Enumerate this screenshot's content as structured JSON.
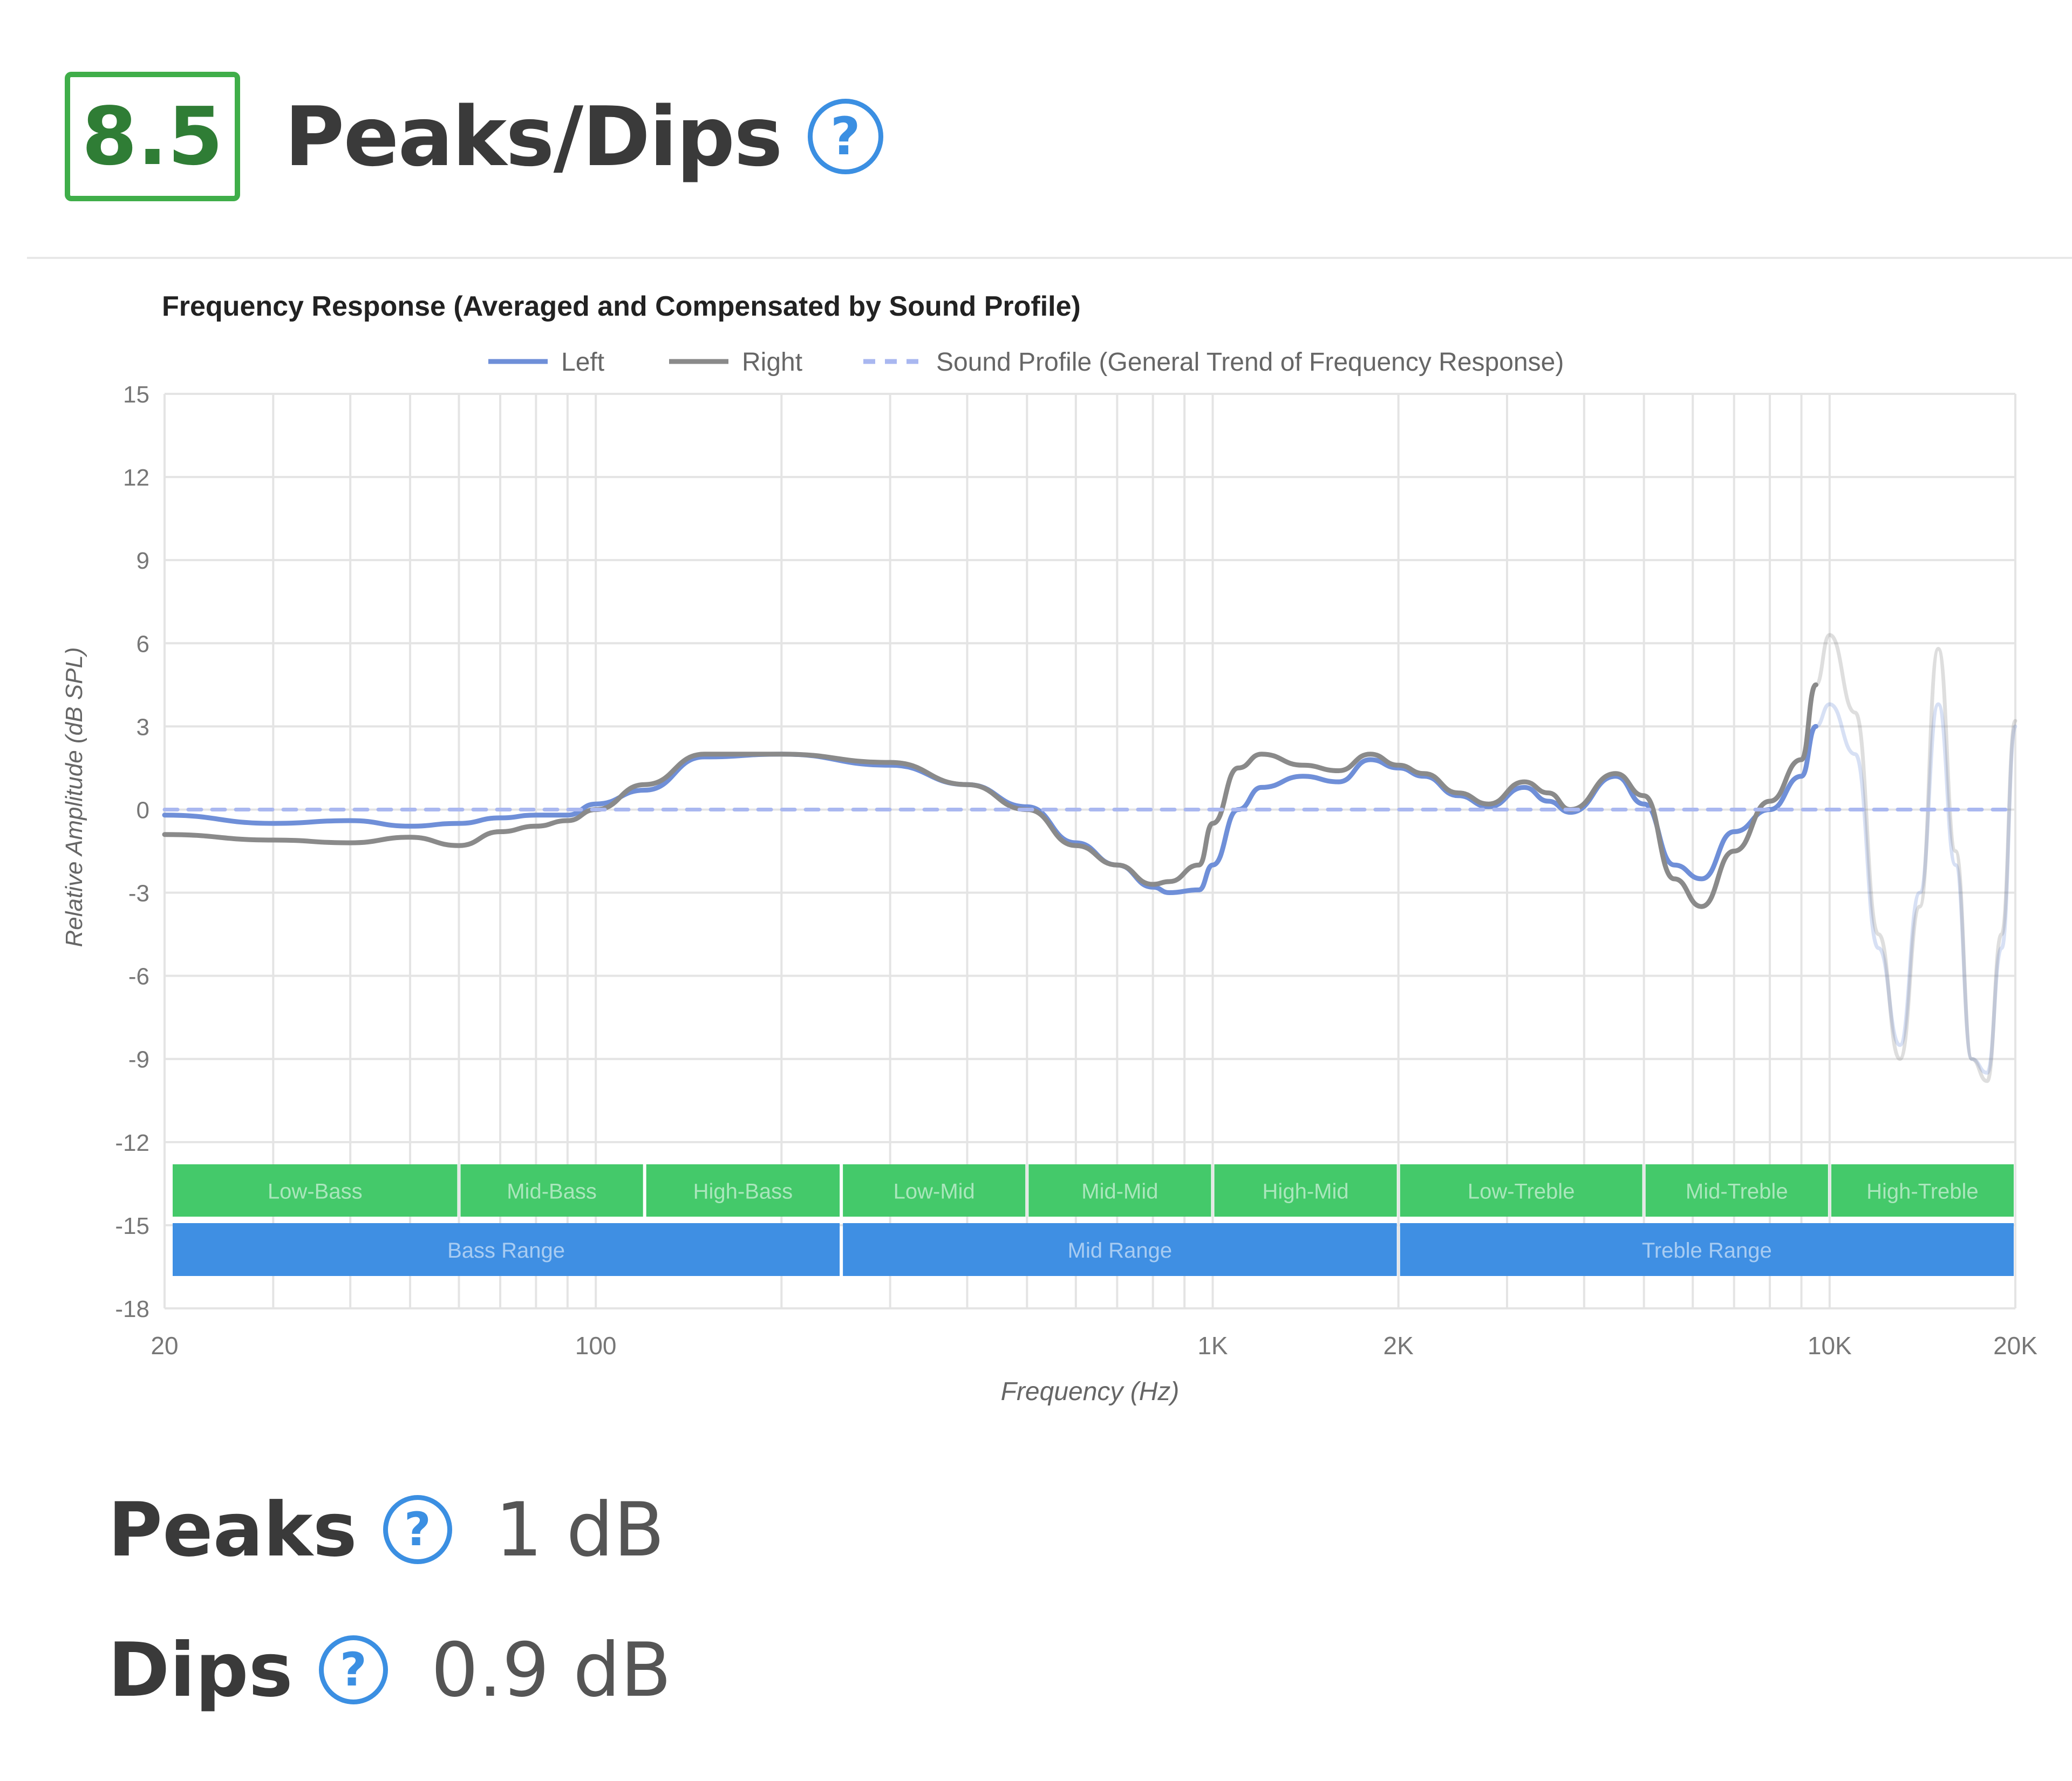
{
  "header": {
    "score": "8.5",
    "title": "Peaks/Dips",
    "help_glyph": "?"
  },
  "stats": [
    {
      "label": "Peaks",
      "value": "1 dB"
    },
    {
      "label": "Dips",
      "value": "0.9 dB"
    }
  ],
  "icons": {
    "help": "question-circle-icon"
  },
  "colors": {
    "score_border": "#3fae49",
    "score_text": "#2f7d35",
    "help": "#3b8fe2",
    "left": "#6f8fd8",
    "right": "#8a8a8a",
    "sound_profile": "#a9b7f0",
    "sub_band": "#44c96a",
    "main_band": "#3f8fe3"
  },
  "chart_data": {
    "type": "line",
    "title": "Frequency Response (Averaged and Compensated by Sound Profile)",
    "xlabel": "Frequency (Hz)",
    "ylabel": "Relative Amplitude (dB SPL)",
    "x_scale": "log",
    "xlim": [
      20,
      20000
    ],
    "ylim": [
      -18,
      15
    ],
    "y_ticks": [
      15,
      12,
      9,
      6,
      3,
      0,
      -3,
      -6,
      -9,
      -12,
      -15,
      -18
    ],
    "x_tick_labels": [
      {
        "value": 20,
        "label": "20"
      },
      {
        "value": 100,
        "label": "100"
      },
      {
        "value": 1000,
        "label": "1K"
      },
      {
        "value": 2000,
        "label": "2K"
      },
      {
        "value": 10000,
        "label": "10K"
      },
      {
        "value": 20000,
        "label": "20K"
      }
    ],
    "x_grid": [
      20,
      30,
      40,
      50,
      60,
      70,
      80,
      90,
      100,
      200,
      300,
      400,
      500,
      600,
      700,
      800,
      900,
      1000,
      2000,
      3000,
      4000,
      5000,
      6000,
      7000,
      8000,
      9000,
      10000,
      20000
    ],
    "grid": true,
    "legend": "top",
    "legend_entries": [
      {
        "name": "Left",
        "style": "solid"
      },
      {
        "name": "Right",
        "style": "solid"
      },
      {
        "name": "Sound Profile (General Trend of Frequency Response)",
        "style": "dashed"
      }
    ],
    "series": [
      {
        "name": "Left",
        "style": "solid",
        "x": [
          20,
          30,
          40,
          50,
          60,
          70,
          80,
          90,
          100,
          120,
          150,
          200,
          300,
          400,
          500,
          600,
          700,
          800,
          850,
          950,
          1000,
          1100,
          1200,
          1400,
          1600,
          1800,
          2000,
          2200,
          2500,
          2800,
          3200,
          3500,
          3800,
          4500,
          5000,
          5600,
          6200,
          7000,
          8000,
          9000,
          9500
        ],
        "y": [
          -0.2,
          -0.5,
          -0.4,
          -0.6,
          -0.5,
          -0.3,
          -0.2,
          -0.2,
          0.2,
          0.7,
          1.9,
          2.0,
          1.6,
          0.9,
          0.1,
          -1.2,
          -2.0,
          -2.8,
          -3.0,
          -2.9,
          -2.0,
          0.0,
          0.8,
          1.2,
          1.0,
          1.8,
          1.5,
          1.2,
          0.5,
          0.1,
          0.8,
          0.3,
          -0.1,
          1.2,
          0.2,
          -2.0,
          -2.5,
          -0.8,
          0.0,
          1.2,
          3.0
        ]
      },
      {
        "name": "Right",
        "style": "solid",
        "x": [
          20,
          30,
          40,
          50,
          60,
          70,
          80,
          90,
          100,
          120,
          150,
          200,
          300,
          400,
          500,
          600,
          700,
          800,
          850,
          950,
          1000,
          1100,
          1200,
          1400,
          1600,
          1800,
          2000,
          2200,
          2500,
          2800,
          3200,
          3500,
          3800,
          4500,
          5000,
          5600,
          6200,
          7000,
          8000,
          9000,
          9500
        ],
        "y": [
          -0.9,
          -1.1,
          -1.2,
          -1.0,
          -1.3,
          -0.8,
          -0.6,
          -0.4,
          0.0,
          0.9,
          2.0,
          2.0,
          1.7,
          0.9,
          0.0,
          -1.3,
          -2.0,
          -2.7,
          -2.6,
          -2.0,
          -0.5,
          1.5,
          2.0,
          1.6,
          1.4,
          2.0,
          1.6,
          1.3,
          0.6,
          0.2,
          1.0,
          0.6,
          0.0,
          1.3,
          0.5,
          -2.5,
          -3.5,
          -1.5,
          0.3,
          1.8,
          4.5
        ]
      },
      {
        "name": "Left (faded)",
        "style": "faded",
        "x": [
          9500,
          10000,
          11000,
          12000,
          13000,
          14000,
          15000,
          16000,
          17000,
          18000,
          19000,
          20000
        ],
        "y": [
          3.0,
          3.8,
          2.0,
          -5.0,
          -8.5,
          -3.0,
          3.8,
          -2.0,
          -9.0,
          -9.5,
          -5.0,
          3.0
        ]
      },
      {
        "name": "Right (faded)",
        "style": "faded",
        "x": [
          9500,
          10000,
          11000,
          12000,
          13000,
          14000,
          15000,
          16000,
          17000,
          18000,
          19000,
          20000
        ],
        "y": [
          4.5,
          6.3,
          3.5,
          -4.5,
          -9.0,
          -3.5,
          5.8,
          -1.5,
          -9.0,
          -9.8,
          -4.5,
          3.2
        ]
      },
      {
        "name": "Sound Profile (General Trend of Frequency Response)",
        "style": "dashed",
        "x": [
          20,
          20000
        ],
        "y": [
          0,
          0
        ]
      }
    ],
    "bands": [
      {
        "label": "Low-Bass",
        "from": 20,
        "to": 60,
        "row": 1
      },
      {
        "label": "Mid-Bass",
        "from": 60,
        "to": 120,
        "row": 1
      },
      {
        "label": "High-Bass",
        "from": 120,
        "to": 250,
        "row": 1
      },
      {
        "label": "Low-Mid",
        "from": 250,
        "to": 500,
        "row": 1
      },
      {
        "label": "Mid-Mid",
        "from": 500,
        "to": 1000,
        "row": 1
      },
      {
        "label": "High-Mid",
        "from": 1000,
        "to": 2000,
        "row": 1
      },
      {
        "label": "Low-Treble",
        "from": 2000,
        "to": 5000,
        "row": 1
      },
      {
        "label": "Mid-Treble",
        "from": 5000,
        "to": 10000,
        "row": 1
      },
      {
        "label": "High-Treble",
        "from": 10000,
        "to": 20000,
        "row": 1
      },
      {
        "label": "Bass Range",
        "from": 20,
        "to": 250,
        "row": 2
      },
      {
        "label": "Mid Range",
        "from": 250,
        "to": 2000,
        "row": 2
      },
      {
        "label": "Treble Range",
        "from": 2000,
        "to": 20000,
        "row": 2
      }
    ]
  }
}
